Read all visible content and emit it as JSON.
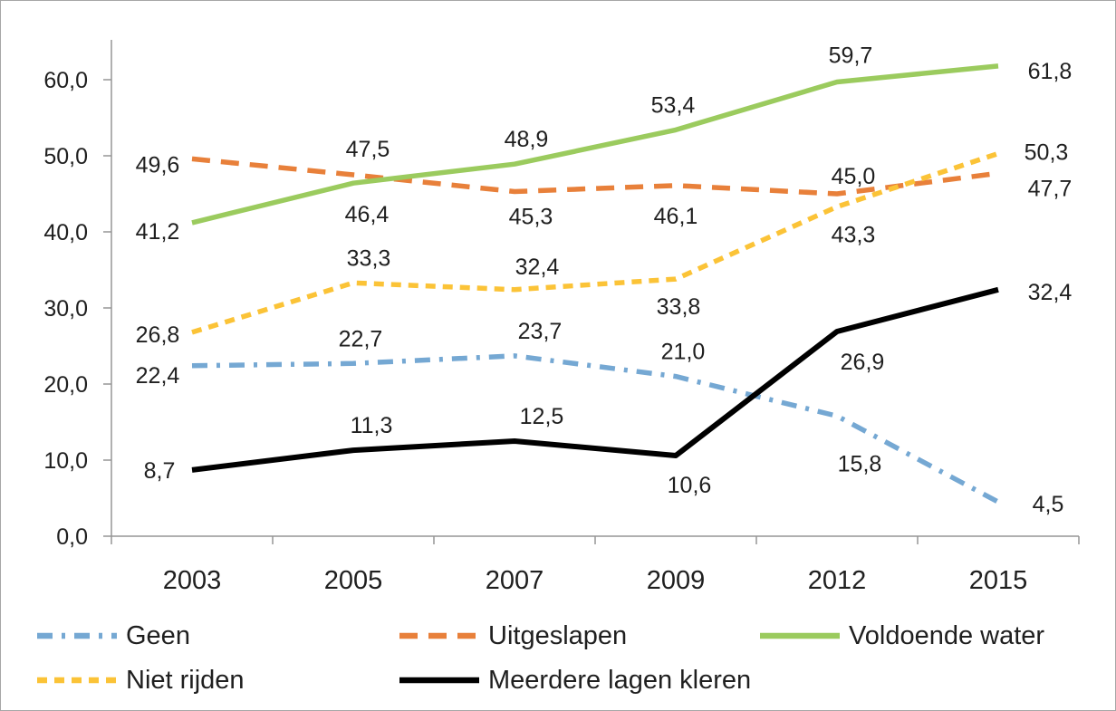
{
  "chart_data": {
    "type": "line",
    "title": "",
    "xlabel": "",
    "ylabel": "",
    "categories": [
      "2003",
      "2005",
      "2007",
      "2009",
      "2012",
      "2015"
    ],
    "y_ticks": [
      "0,0",
      "10,0",
      "20,0",
      "30,0",
      "40,0",
      "50,0",
      "60,0"
    ],
    "y_tick_values": [
      0,
      10,
      20,
      30,
      40,
      50,
      60
    ],
    "ylim": [
      0,
      65.2
    ],
    "grid": false,
    "legend_position": "bottom",
    "decimal_separator": ",",
    "series": [
      {
        "name": "Geen",
        "color": "#75A8D3",
        "dash": "dash-dot",
        "values": [
          22.4,
          22.7,
          23.7,
          21.0,
          15.8,
          4.5
        ],
        "labels": [
          "22,4",
          "22,7",
          "23,7",
          "21,0",
          "15,8",
          "4,5"
        ],
        "label_offsets": [
          [
            -38,
            10
          ],
          [
            8,
            -28
          ],
          [
            28,
            -28
          ],
          [
            8,
            -28
          ],
          [
            25,
            52
          ],
          [
            55,
            2
          ]
        ]
      },
      {
        "name": "Uitgeslapen",
        "color": "#E8803A",
        "dash": "dash",
        "values": [
          49.6,
          47.5,
          45.3,
          46.1,
          45.0,
          47.7
        ],
        "labels": [
          "49,6",
          "47,5",
          "45,3",
          "46,1",
          "45,0",
          "47,7"
        ],
        "label_offsets": [
          [
            -38,
            6
          ],
          [
            16,
            -29
          ],
          [
            18,
            27
          ],
          [
            0,
            33
          ],
          [
            18,
            -20
          ],
          [
            57,
            16
          ]
        ]
      },
      {
        "name": "Voldoende water",
        "color": "#9BCB5E",
        "dash": "solid",
        "values": [
          41.2,
          46.4,
          48.9,
          53.4,
          59.7,
          61.8
        ],
        "labels": [
          "41,2",
          "46,4",
          "48,9",
          "53,4",
          "59,7",
          "61,8"
        ],
        "label_offsets": [
          [
            -38,
            9
          ],
          [
            15,
            34
          ],
          [
            13,
            -28
          ],
          [
            -3,
            -28
          ],
          [
            15,
            -30
          ],
          [
            57,
            5
          ]
        ]
      },
      {
        "name": "Niet rijden",
        "color": "#FBC337",
        "dash": "short-dash",
        "values": [
          26.8,
          33.3,
          32.4,
          33.8,
          43.3,
          50.3
        ],
        "labels": [
          "26,8",
          "33,3",
          "32,4",
          "33,8",
          "43,3",
          "50,3"
        ],
        "label_offsets": [
          [
            -38,
            2
          ],
          [
            17,
            -28
          ],
          [
            25,
            -26
          ],
          [
            3,
            30
          ],
          [
            18,
            30
          ],
          [
            53,
            -2
          ]
        ]
      },
      {
        "name": "Meerdere lagen kleren",
        "color": "#000000",
        "dash": "solid",
        "values": [
          8.7,
          11.3,
          12.5,
          10.6,
          26.9,
          32.4
        ],
        "labels": [
          "8,7",
          "11,3",
          "12,5",
          "10,6",
          "26,9",
          "32,4"
        ],
        "label_offsets": [
          [
            -36,
            0
          ],
          [
            20,
            -28
          ],
          [
            30,
            -28
          ],
          [
            15,
            32
          ],
          [
            28,
            33
          ],
          [
            57,
            2
          ]
        ]
      }
    ],
    "colors": {
      "axis": "#969696",
      "text": "#1f1f1f",
      "background": "#ffffff",
      "border": "#a6a6a6"
    }
  }
}
